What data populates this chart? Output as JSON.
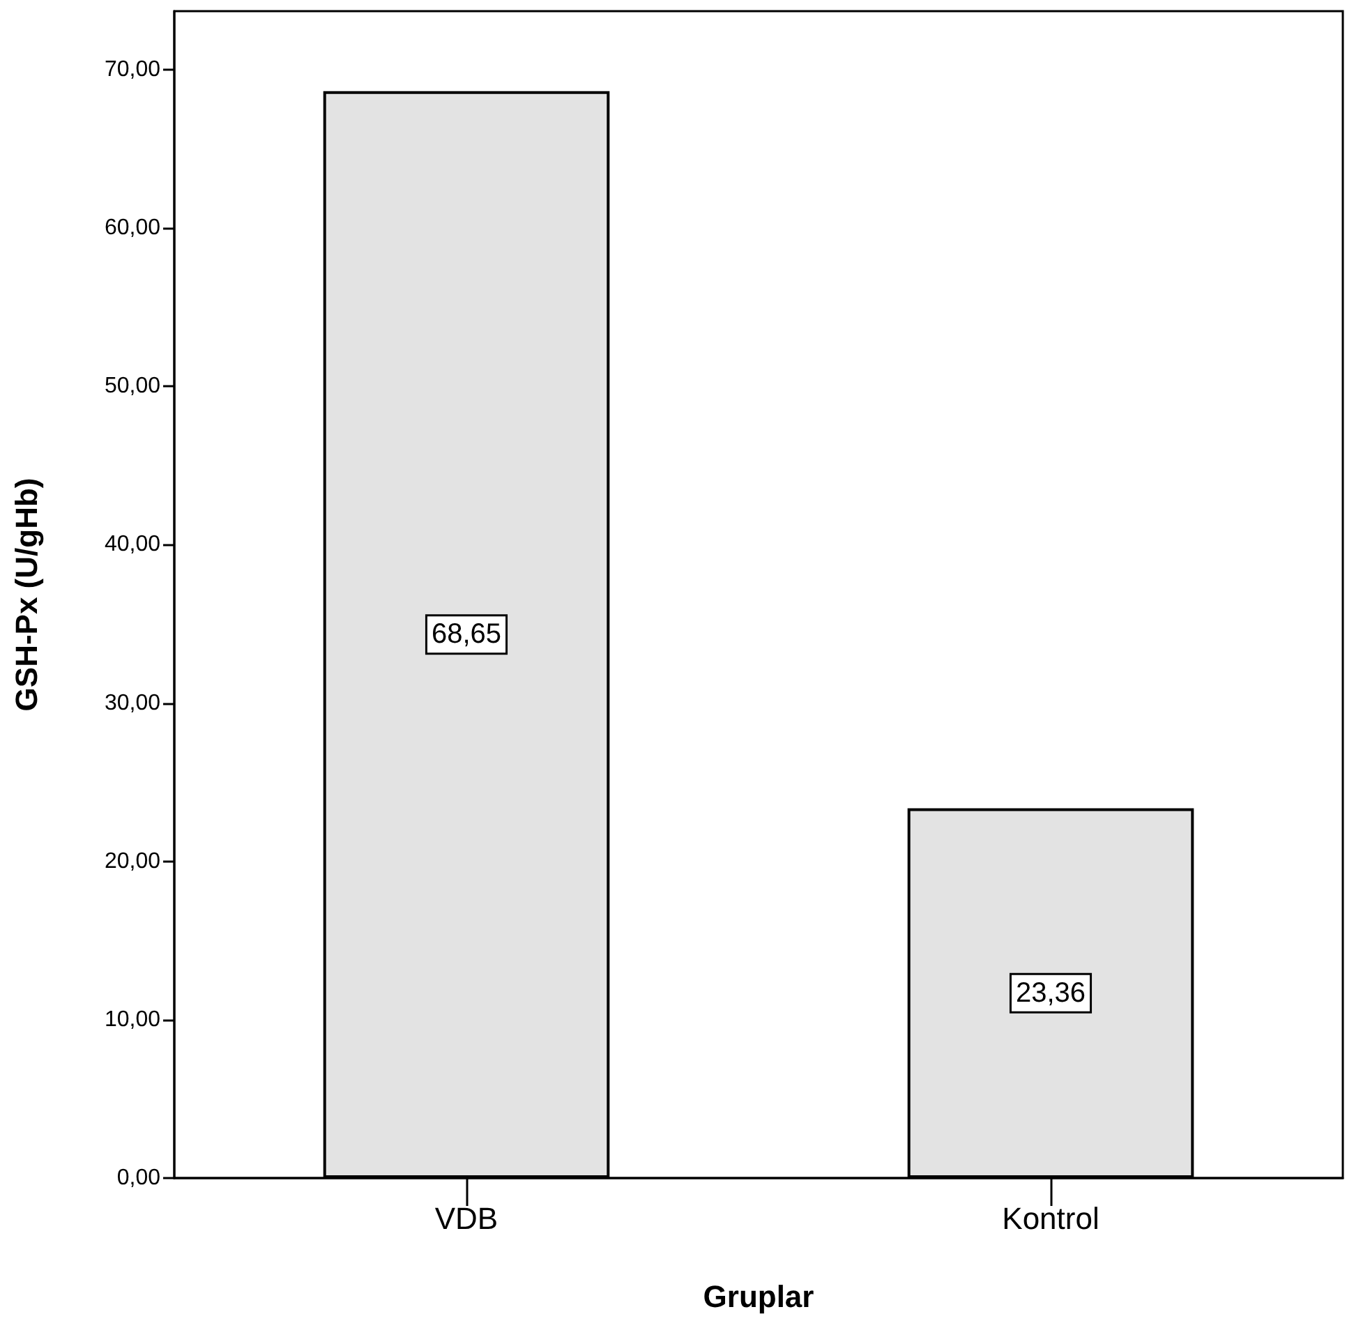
{
  "chart_data": {
    "type": "bar",
    "xlabel": "Gruplar",
    "ylabel": "GSH-Px (U/gHb)",
    "categories": [
      "VDB",
      "Kontrol"
    ],
    "values": [
      68.65,
      23.36
    ],
    "value_labels": [
      "68,65",
      "23,36"
    ],
    "color": "#e3e3e3",
    "ylim": [
      0,
      73.7
    ],
    "yticks": [
      {
        "value": 0,
        "label": "0,00"
      },
      {
        "value": 10,
        "label": "10,00"
      },
      {
        "value": 20,
        "label": "20,00"
      },
      {
        "value": 30,
        "label": "30,00"
      },
      {
        "value": 40,
        "label": "40,00"
      },
      {
        "value": 50,
        "label": "50,00"
      },
      {
        "value": 60,
        "label": "60,00"
      },
      {
        "value": 70,
        "label": "70,00"
      }
    ],
    "grid": false
  }
}
